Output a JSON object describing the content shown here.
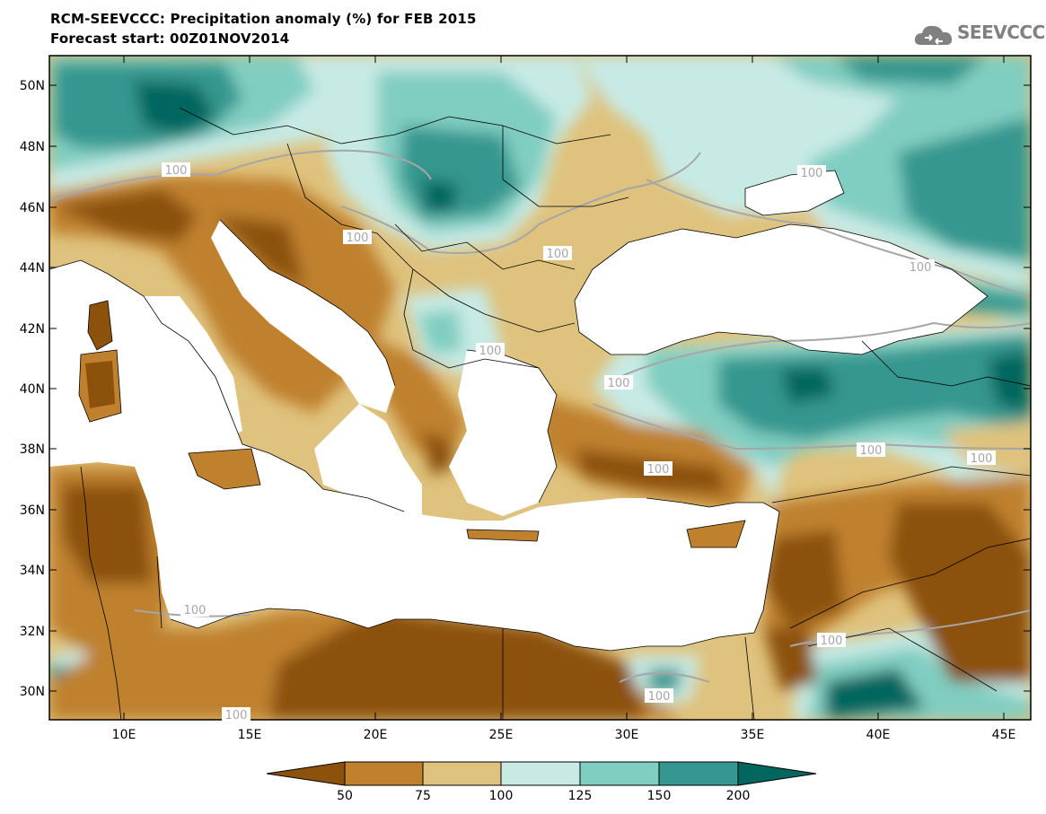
{
  "title": {
    "line1": "RCM-SEEVCCC: Precipitation anomaly (%) for FEB 2015",
    "line2": "Forecast start: 00Z01NOV2014"
  },
  "logo": {
    "text": "SEEVCCC"
  },
  "map": {
    "lon_ticks": [
      "10E",
      "15E",
      "20E",
      "25E",
      "30E",
      "35E",
      "40E",
      "45E"
    ],
    "lat_ticks": [
      "50N",
      "48N",
      "46N",
      "44N",
      "42N",
      "40N",
      "38N",
      "36N",
      "34N",
      "32N",
      "30N"
    ],
    "contour_label": "100",
    "colors": {
      "below_50": "#8c510a",
      "50_75": "#bf812d",
      "75_100": "#dfc27d",
      "100_125": "#c7eae5",
      "125_150": "#80cdc1",
      "150_200": "#35978f",
      "above_200": "#01665e",
      "sea": "#ffffff"
    }
  },
  "colorbar": {
    "labels": [
      "50",
      "75",
      "100",
      "125",
      "150",
      "200"
    ]
  }
}
